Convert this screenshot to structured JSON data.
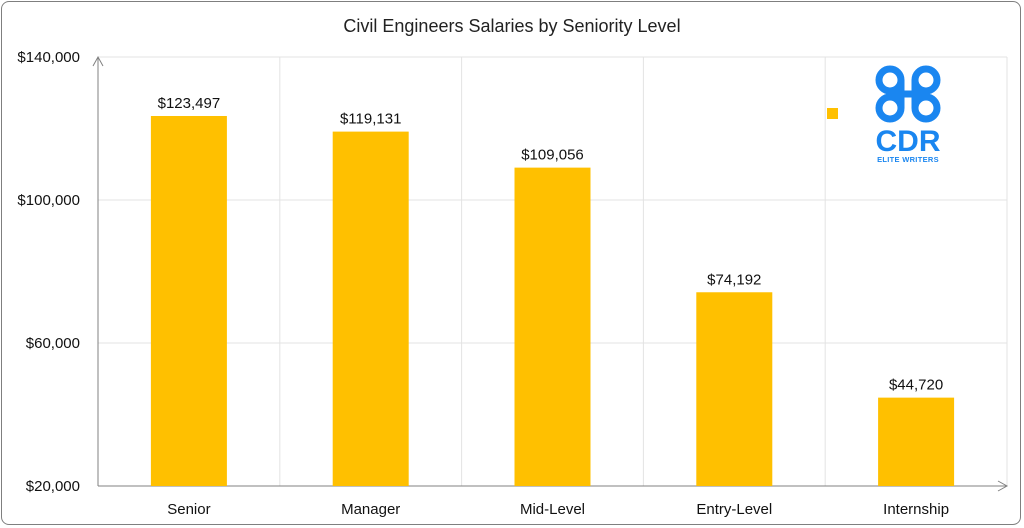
{
  "chart_data": {
    "type": "bar",
    "title": "Civil Engineers Salaries by Seniority Level",
    "categories": [
      "Senior",
      "Manager",
      "Mid-Level",
      "Entry-Level",
      "Internship"
    ],
    "values": [
      123497,
      119131,
      109056,
      74192,
      44720
    ],
    "data_labels": [
      "$123,497",
      "$119,131",
      "$109,056",
      "$74,192",
      "$44,720"
    ],
    "y_ticks": [
      "$20,000",
      "$60,000",
      "$100,000",
      "$140,000"
    ],
    "y_tick_values": [
      20000,
      60000,
      100000,
      140000
    ],
    "ylim": [
      20000,
      140000
    ],
    "xlabel": "",
    "ylabel": "",
    "grid": "vertical",
    "legend": "right",
    "bar_color": "#FFC000"
  },
  "logo": {
    "mark": "CDR",
    "tagline": "ELITE WRITERS",
    "color": "#1a86f0"
  }
}
